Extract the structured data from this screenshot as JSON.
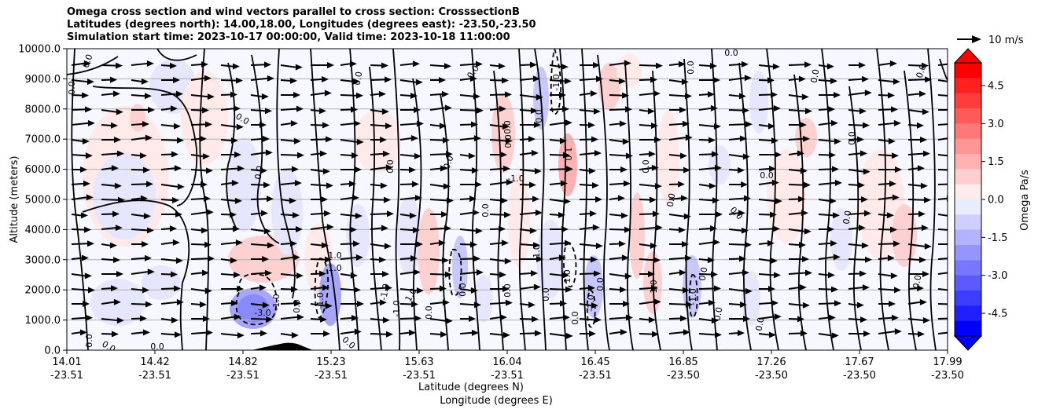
{
  "chart_data": {
    "type": "contour",
    "title_lines": [
      "Omega cross section and wind vectors parallel to cross section: CrosssectionB",
      "Latitudes (degrees north): 14.00,18.00, Longitudes (degrees east): -23.50,-23.50",
      "Simulation start time: 2023-10-17 00:00:00, Valid time: 2023-10-18 11:00:00"
    ],
    "ylabel": "Altitude (meters)",
    "xlabel_lat": "Latitude (degrees N)",
    "xlabel_lon": "Longitude (degrees E)",
    "ylim": [
      0,
      10000
    ],
    "y_ticks": [
      "0.0",
      "1000.0",
      "2000.0",
      "3000.0",
      "4000.0",
      "5000.0",
      "6000.0",
      "7000.0",
      "8000.0",
      "9000.0",
      "10000.0"
    ],
    "x_ticks": [
      {
        "lat": "14.01",
        "lon": "-23.51"
      },
      {
        "lat": "14.42",
        "lon": "-23.51"
      },
      {
        "lat": "14.82",
        "lon": "-23.51"
      },
      {
        "lat": "15.23",
        "lon": "-23.51"
      },
      {
        "lat": "15.63",
        "lon": "-23.51"
      },
      {
        "lat": "16.04",
        "lon": "-23.51"
      },
      {
        "lat": "16.45",
        "lon": "-23.51"
      },
      {
        "lat": "16.85",
        "lon": "-23.50"
      },
      {
        "lat": "17.26",
        "lon": "-23.50"
      },
      {
        "lat": "17.67",
        "lon": "-23.50"
      },
      {
        "lat": "17.99",
        "lon": "-23.50"
      }
    ],
    "colorbar": {
      "label": "Omega Pa/s",
      "tick_labels": [
        "4.5",
        "3.0",
        "1.5",
        "0.0",
        "-1.5",
        "-3.0",
        "-4.5"
      ],
      "colors": [
        "#ff0000",
        "#ff2020",
        "#ff3d3d",
        "#ff5a5a",
        "#ff7878",
        "#ff9595",
        "#ffb2b2",
        "#ffcfcf",
        "#ffebeb",
        "#ebebff",
        "#cfcfff",
        "#b2b2ff",
        "#9595ff",
        "#7878ff",
        "#5a5aff",
        "#3d3dff",
        "#2020ff",
        "#0000ff"
      ]
    },
    "vector_key": "10 m/s",
    "contour_levels_labeled": [
      "-3.0",
      "-1.0",
      "0.0",
      "1.0"
    ],
    "contour_labels": [
      "0.0",
      "0.0",
      "0.0",
      "0.0",
      "0.0",
      "0.0",
      "0.0",
      "-1.0",
      "1.0",
      "0.0",
      "0.0",
      "0.0",
      "0.0",
      "0.0",
      "0.0",
      "0.0",
      "0.0",
      "0.0",
      "0.0",
      "0.0",
      "-3.0",
      "-1.0",
      "0.0",
      "-1.0",
      "1.0",
      "1.0",
      "-1.0",
      "-1.0",
      "0.0",
      "0.0",
      "0.0",
      "1.0",
      "-1.0",
      "0.0",
      "0.0",
      "0.0",
      "1.0",
      "-1.0",
      "0.0",
      "-1.0",
      "0.0",
      "1.0",
      "0.0",
      "0.0",
      "0.0",
      "0.0",
      "0.0",
      "0.0",
      "0.0",
      "0.0",
      "0.0",
      "0.0",
      "-1.0"
    ],
    "grid": true
  }
}
